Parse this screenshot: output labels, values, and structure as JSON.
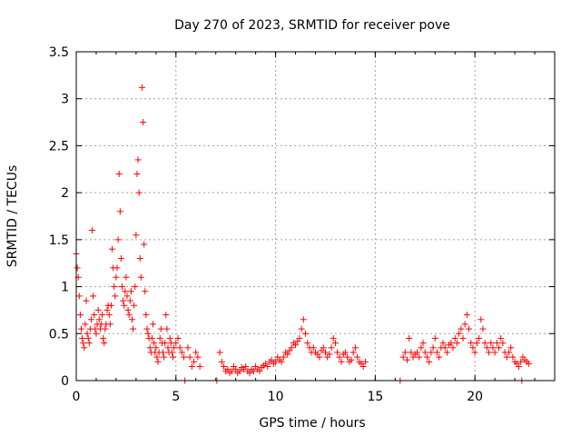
{
  "chart_data": {
    "type": "scatter",
    "title": "Day 270 of 2023, SRMTID for receiver pove",
    "xlabel": "GPS time / hours",
    "ylabel": "SRMTID / TECUs",
    "xlim": [
      0,
      24
    ],
    "ylim": [
      0,
      3.5
    ],
    "x_ticks": [
      0,
      5,
      10,
      15,
      20
    ],
    "y_ticks": [
      0,
      0.5,
      1,
      1.5,
      2,
      2.5,
      3,
      3.5
    ],
    "x_tick_labels": [
      "0",
      "5",
      "10",
      "15",
      "20"
    ],
    "y_tick_labels": [
      "0",
      "0.5",
      "1",
      "1.5",
      "2",
      "2.5",
      "3",
      "3.5"
    ],
    "grid": true,
    "marker": "+",
    "marker_color": "#ff0000",
    "series": [
      {
        "name": "SRMTID",
        "points": [
          [
            0.0,
            1.35
          ],
          [
            0.05,
            1.2
          ],
          [
            0.1,
            1.1
          ],
          [
            0.15,
            0.9
          ],
          [
            0.2,
            0.7
          ],
          [
            0.25,
            0.55
          ],
          [
            0.3,
            0.45
          ],
          [
            0.35,
            0.4
          ],
          [
            0.4,
            0.35
          ],
          [
            0.45,
            0.6
          ],
          [
            0.5,
            0.85
          ],
          [
            0.55,
            0.5
          ],
          [
            0.6,
            0.45
          ],
          [
            0.65,
            0.4
          ],
          [
            0.7,
            0.55
          ],
          [
            0.75,
            0.65
          ],
          [
            0.8,
            1.6
          ],
          [
            0.85,
            0.9
          ],
          [
            0.9,
            0.7
          ],
          [
            0.95,
            0.55
          ],
          [
            1.0,
            0.5
          ],
          [
            1.05,
            0.6
          ],
          [
            1.1,
            0.75
          ],
          [
            1.15,
            0.65
          ],
          [
            1.2,
            0.55
          ],
          [
            1.25,
            0.6
          ],
          [
            1.3,
            0.7
          ],
          [
            1.35,
            0.45
          ],
          [
            1.4,
            0.4
          ],
          [
            1.45,
            0.55
          ],
          [
            1.5,
            0.6
          ],
          [
            1.55,
            0.75
          ],
          [
            1.6,
            0.8
          ],
          [
            1.65,
            0.7
          ],
          [
            1.7,
            0.6
          ],
          [
            1.75,
            0.8
          ],
          [
            1.8,
            1.4
          ],
          [
            1.85,
            1.2
          ],
          [
            1.9,
            1.0
          ],
          [
            1.95,
            0.9
          ],
          [
            2.0,
            1.1
          ],
          [
            2.05,
            1.2
          ],
          [
            2.1,
            1.5
          ],
          [
            2.15,
            2.2
          ],
          [
            2.2,
            1.8
          ],
          [
            2.25,
            1.3
          ],
          [
            2.3,
            1.0
          ],
          [
            2.35,
            0.85
          ],
          [
            2.4,
            0.8
          ],
          [
            2.45,
            0.95
          ],
          [
            2.5,
            1.1
          ],
          [
            2.55,
            0.9
          ],
          [
            2.6,
            0.75
          ],
          [
            2.65,
            0.7
          ],
          [
            2.7,
            0.85
          ],
          [
            2.75,
            0.95
          ],
          [
            2.8,
            0.65
          ],
          [
            2.85,
            0.55
          ],
          [
            2.9,
            0.8
          ],
          [
            2.95,
            1.0
          ],
          [
            3.0,
            1.55
          ],
          [
            3.05,
            2.2
          ],
          [
            3.1,
            2.35
          ],
          [
            3.15,
            2.0
          ],
          [
            3.2,
            1.3
          ],
          [
            3.25,
            1.1
          ],
          [
            3.3,
            3.12
          ],
          [
            3.35,
            2.75
          ],
          [
            3.4,
            1.45
          ],
          [
            3.45,
            0.95
          ],
          [
            3.5,
            0.7
          ],
          [
            3.55,
            0.55
          ],
          [
            3.6,
            0.5
          ],
          [
            3.65,
            0.45
          ],
          [
            3.7,
            0.35
          ],
          [
            3.75,
            0.3
          ],
          [
            3.8,
            0.45
          ],
          [
            3.85,
            0.6
          ],
          [
            3.9,
            0.4
          ],
          [
            3.95,
            0.3
          ],
          [
            4.0,
            0.35
          ],
          [
            4.05,
            0.25
          ],
          [
            4.1,
            0.2
          ],
          [
            4.15,
            0.3
          ],
          [
            4.2,
            0.45
          ],
          [
            4.25,
            0.55
          ],
          [
            4.3,
            0.4
          ],
          [
            4.35,
            0.3
          ],
          [
            4.4,
            0.25
          ],
          [
            4.45,
            0.4
          ],
          [
            4.5,
            0.7
          ],
          [
            4.55,
            0.55
          ],
          [
            4.6,
            0.35
          ],
          [
            4.65,
            0.3
          ],
          [
            4.7,
            0.45
          ],
          [
            4.75,
            0.4
          ],
          [
            4.8,
            0.3
          ],
          [
            4.85,
            0.25
          ],
          [
            4.9,
            0.35
          ],
          [
            5.0,
            0.4
          ],
          [
            5.1,
            0.45
          ],
          [
            5.2,
            0.35
          ],
          [
            5.3,
            0.3
          ],
          [
            5.4,
            0.25
          ],
          [
            5.45,
            0.0
          ],
          [
            5.6,
            0.35
          ],
          [
            5.7,
            0.25
          ],
          [
            5.8,
            0.15
          ],
          [
            5.9,
            0.2
          ],
          [
            6.0,
            0.3
          ],
          [
            6.1,
            0.25
          ],
          [
            6.2,
            0.15
          ],
          [
            7.05,
            0.0
          ],
          [
            7.2,
            0.3
          ],
          [
            7.3,
            0.2
          ],
          [
            7.4,
            0.15
          ],
          [
            7.5,
            0.1
          ],
          [
            7.6,
            0.12
          ],
          [
            7.7,
            0.08
          ],
          [
            7.8,
            0.1
          ],
          [
            7.9,
            0.15
          ],
          [
            8.0,
            0.12
          ],
          [
            8.1,
            0.08
          ],
          [
            8.2,
            0.1
          ],
          [
            8.3,
            0.14
          ],
          [
            8.4,
            0.12
          ],
          [
            8.5,
            0.15
          ],
          [
            8.6,
            0.1
          ],
          [
            8.7,
            0.08
          ],
          [
            8.8,
            0.12
          ],
          [
            8.9,
            0.1
          ],
          [
            9.0,
            0.15
          ],
          [
            9.1,
            0.12
          ],
          [
            9.2,
            0.1
          ],
          [
            9.3,
            0.14
          ],
          [
            9.4,
            0.16
          ],
          [
            9.5,
            0.18
          ],
          [
            9.6,
            0.15
          ],
          [
            9.7,
            0.2
          ],
          [
            9.8,
            0.22
          ],
          [
            9.9,
            0.18
          ],
          [
            10.0,
            0.2
          ],
          [
            10.1,
            0.25
          ],
          [
            10.2,
            0.22
          ],
          [
            10.3,
            0.2
          ],
          [
            10.4,
            0.25
          ],
          [
            10.5,
            0.3
          ],
          [
            10.6,
            0.28
          ],
          [
            10.7,
            0.32
          ],
          [
            10.8,
            0.35
          ],
          [
            10.9,
            0.4
          ],
          [
            11.0,
            0.38
          ],
          [
            11.1,
            0.42
          ],
          [
            11.2,
            0.45
          ],
          [
            11.3,
            0.55
          ],
          [
            11.4,
            0.65
          ],
          [
            11.5,
            0.5
          ],
          [
            11.6,
            0.4
          ],
          [
            11.7,
            0.35
          ],
          [
            11.8,
            0.3
          ],
          [
            11.9,
            0.35
          ],
          [
            12.0,
            0.3
          ],
          [
            12.1,
            0.28
          ],
          [
            12.2,
            0.25
          ],
          [
            12.3,
            0.32
          ],
          [
            12.4,
            0.35
          ],
          [
            12.5,
            0.3
          ],
          [
            12.6,
            0.25
          ],
          [
            12.7,
            0.28
          ],
          [
            12.8,
            0.35
          ],
          [
            12.9,
            0.45
          ],
          [
            13.0,
            0.4
          ],
          [
            13.1,
            0.3
          ],
          [
            13.2,
            0.25
          ],
          [
            13.3,
            0.2
          ],
          [
            13.4,
            0.28
          ],
          [
            13.5,
            0.3
          ],
          [
            13.6,
            0.25
          ],
          [
            13.7,
            0.2
          ],
          [
            13.8,
            0.22
          ],
          [
            13.9,
            0.3
          ],
          [
            14.0,
            0.35
          ],
          [
            14.1,
            0.25
          ],
          [
            14.2,
            0.2
          ],
          [
            14.3,
            0.18
          ],
          [
            14.4,
            0.15
          ],
          [
            14.5,
            0.2
          ],
          [
            16.25,
            0.0
          ],
          [
            16.4,
            0.25
          ],
          [
            16.5,
            0.3
          ],
          [
            16.6,
            0.22
          ],
          [
            16.7,
            0.45
          ],
          [
            16.8,
            0.3
          ],
          [
            16.9,
            0.25
          ],
          [
            17.0,
            0.28
          ],
          [
            17.1,
            0.3
          ],
          [
            17.2,
            0.25
          ],
          [
            17.3,
            0.35
          ],
          [
            17.4,
            0.4
          ],
          [
            17.5,
            0.3
          ],
          [
            17.6,
            0.25
          ],
          [
            17.7,
            0.2
          ],
          [
            17.8,
            0.3
          ],
          [
            17.9,
            0.35
          ],
          [
            18.0,
            0.45
          ],
          [
            18.1,
            0.3
          ],
          [
            18.2,
            0.25
          ],
          [
            18.3,
            0.35
          ],
          [
            18.4,
            0.4
          ],
          [
            18.5,
            0.35
          ],
          [
            18.6,
            0.3
          ],
          [
            18.7,
            0.38
          ],
          [
            18.8,
            0.4
          ],
          [
            18.9,
            0.35
          ],
          [
            19.0,
            0.45
          ],
          [
            19.1,
            0.4
          ],
          [
            19.2,
            0.5
          ],
          [
            19.3,
            0.55
          ],
          [
            19.4,
            0.45
          ],
          [
            19.5,
            0.6
          ],
          [
            19.6,
            0.7
          ],
          [
            19.7,
            0.55
          ],
          [
            19.8,
            0.4
          ],
          [
            19.9,
            0.35
          ],
          [
            20.0,
            0.3
          ],
          [
            20.1,
            0.4
          ],
          [
            20.2,
            0.45
          ],
          [
            20.3,
            0.65
          ],
          [
            20.4,
            0.55
          ],
          [
            20.5,
            0.4
          ],
          [
            20.6,
            0.35
          ],
          [
            20.7,
            0.3
          ],
          [
            20.8,
            0.4
          ],
          [
            20.9,
            0.35
          ],
          [
            21.0,
            0.3
          ],
          [
            21.1,
            0.4
          ],
          [
            21.2,
            0.35
          ],
          [
            21.3,
            0.45
          ],
          [
            21.4,
            0.4
          ],
          [
            21.5,
            0.3
          ],
          [
            21.6,
            0.25
          ],
          [
            21.7,
            0.3
          ],
          [
            21.8,
            0.35
          ],
          [
            21.9,
            0.25
          ],
          [
            22.0,
            0.2
          ],
          [
            22.1,
            0.18
          ],
          [
            22.2,
            0.15
          ],
          [
            22.3,
            0.2
          ],
          [
            22.4,
            0.25
          ],
          [
            22.5,
            0.22
          ],
          [
            22.6,
            0.2
          ],
          [
            22.7,
            0.18
          ],
          [
            22.35,
            0.0
          ]
        ]
      }
    ]
  }
}
